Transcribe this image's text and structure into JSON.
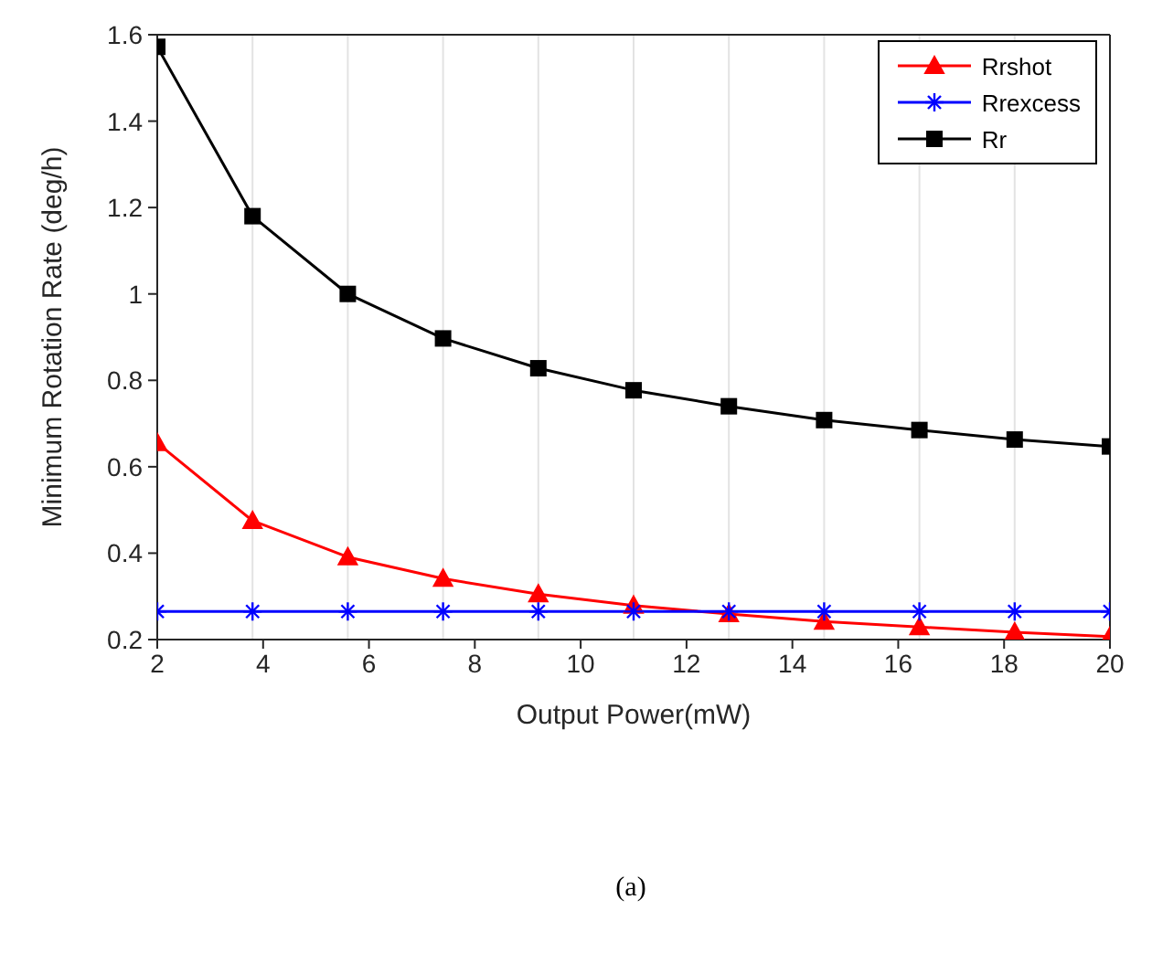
{
  "chart_data": {
    "type": "line",
    "xlabel": "Output Power(mW)",
    "ylabel": "Minimum Rotation Rate (deg/h)",
    "annotations": [
      "(a)"
    ],
    "x": [
      2,
      3.8,
      5.6,
      7.4,
      9.2,
      11,
      12.8,
      14.6,
      16.4,
      18.2,
      20
    ],
    "series": [
      {
        "name": "Rrshot",
        "color": "#ff0000",
        "marker": "triangle",
        "values": [
          0.655,
          0.475,
          0.391,
          0.341,
          0.305,
          0.279,
          0.259,
          0.242,
          0.229,
          0.217,
          0.207
        ]
      },
      {
        "name": "Rrexcess",
        "color": "#0000ff",
        "marker": "cross",
        "values": [
          0.265,
          0.265,
          0.265,
          0.265,
          0.265,
          0.265,
          0.265,
          0.265,
          0.265,
          0.265,
          0.265
        ]
      },
      {
        "name": "Rr",
        "color": "#000000",
        "marker": "square",
        "values": [
          1.572,
          1.18,
          1.0,
          0.897,
          0.828,
          0.777,
          0.74,
          0.708,
          0.685,
          0.663,
          0.647
        ]
      }
    ],
    "xlim": [
      2,
      20
    ],
    "xticks": [
      2,
      4,
      6,
      8,
      10,
      12,
      14,
      16,
      18,
      20
    ],
    "ylim": [
      0.2,
      1.6
    ],
    "yticks": [
      0.2,
      0.4,
      0.6,
      0.8,
      1,
      1.2,
      1.4,
      1.6
    ],
    "grid": true,
    "legend": "top right",
    "line_style": "solid"
  }
}
